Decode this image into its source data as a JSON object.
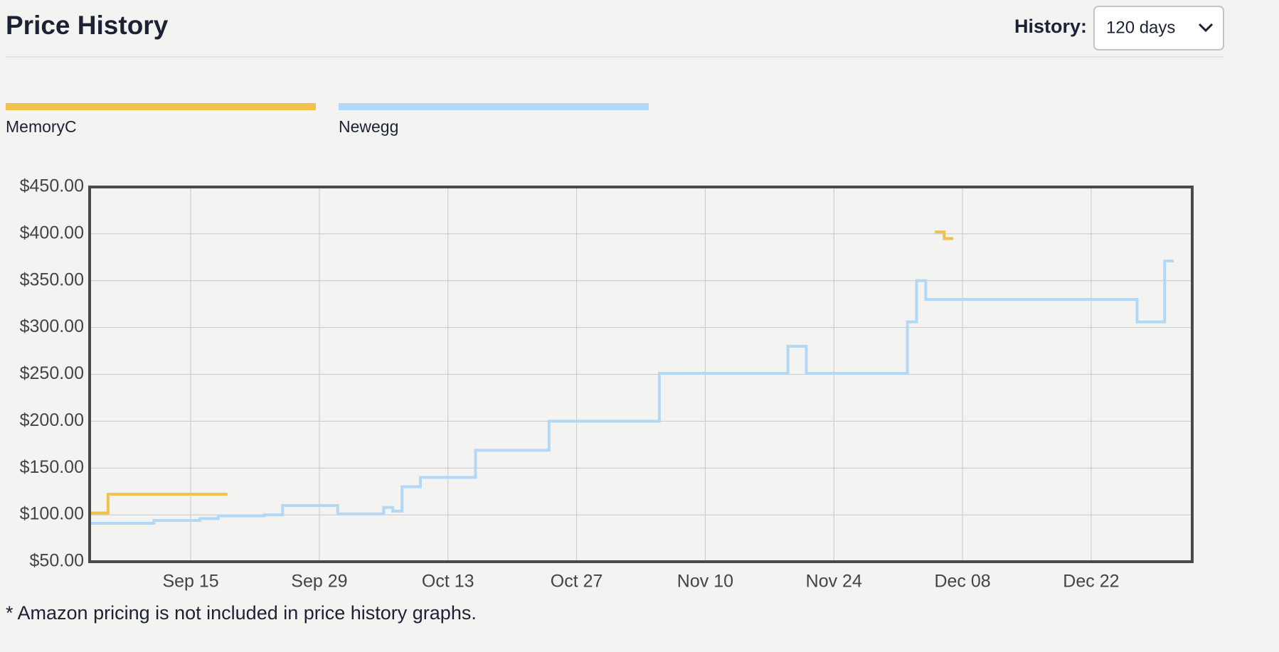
{
  "header": {
    "history_label": "History:",
    "history_value": "120 days"
  },
  "chart_data": {
    "type": "step-line",
    "title": "Price History",
    "xlim": [
      "Sep 4",
      "Jan 2"
    ],
    "xticks": [
      "Sep 15",
      "Sep 29",
      "Oct 13",
      "Oct 27",
      "Nov 10",
      "Nov 24",
      "Dec 08",
      "Dec 22"
    ],
    "ylim": [
      50,
      450
    ],
    "yticks": [
      {
        "value": 50,
        "label": "$50.00"
      },
      {
        "value": 100,
        "label": "$100.00"
      },
      {
        "value": 150,
        "label": "$150.00"
      },
      {
        "value": 200,
        "label": "$200.00"
      },
      {
        "value": 250,
        "label": "$250.00"
      },
      {
        "value": 300,
        "label": "$300.00"
      },
      {
        "value": 350,
        "label": "$350.00"
      },
      {
        "value": 400,
        "label": "$400.00"
      },
      {
        "value": 450,
        "label": "$450.00"
      }
    ],
    "grid": true,
    "series": [
      {
        "name": "MemoryC",
        "color": "#f0c24b",
        "x": [
          "Sep 4",
          "Sep 6",
          "Sep 19",
          null,
          "Dec 5",
          "Dec 6",
          "Dec 7"
        ],
        "values": [
          102,
          122,
          122,
          null,
          402,
          395,
          395
        ]
      },
      {
        "name": "Newegg",
        "color": "#b3d8f5",
        "x": [
          "Sep 4",
          "Sep 11",
          "Sep 16",
          "Sep 18",
          "Sep 23",
          "Sep 25",
          "Oct 1",
          "Oct 6",
          "Oct 7",
          "Oct 8",
          "Oct 10",
          "Oct 16",
          "Oct 24",
          "Nov 5",
          "Nov 19",
          "Nov 21",
          "Dec 2",
          "Dec 3",
          "Dec 4",
          "Dec 27",
          "Dec 30",
          "Dec 31"
        ],
        "values": [
          91,
          94,
          96,
          99,
          100,
          110,
          101,
          108,
          104,
          130,
          140,
          169,
          200,
          251,
          280,
          251,
          306,
          350,
          330,
          306,
          371,
          371
        ]
      }
    ]
  },
  "footnote": "* Amazon pricing is not included in price history graphs."
}
